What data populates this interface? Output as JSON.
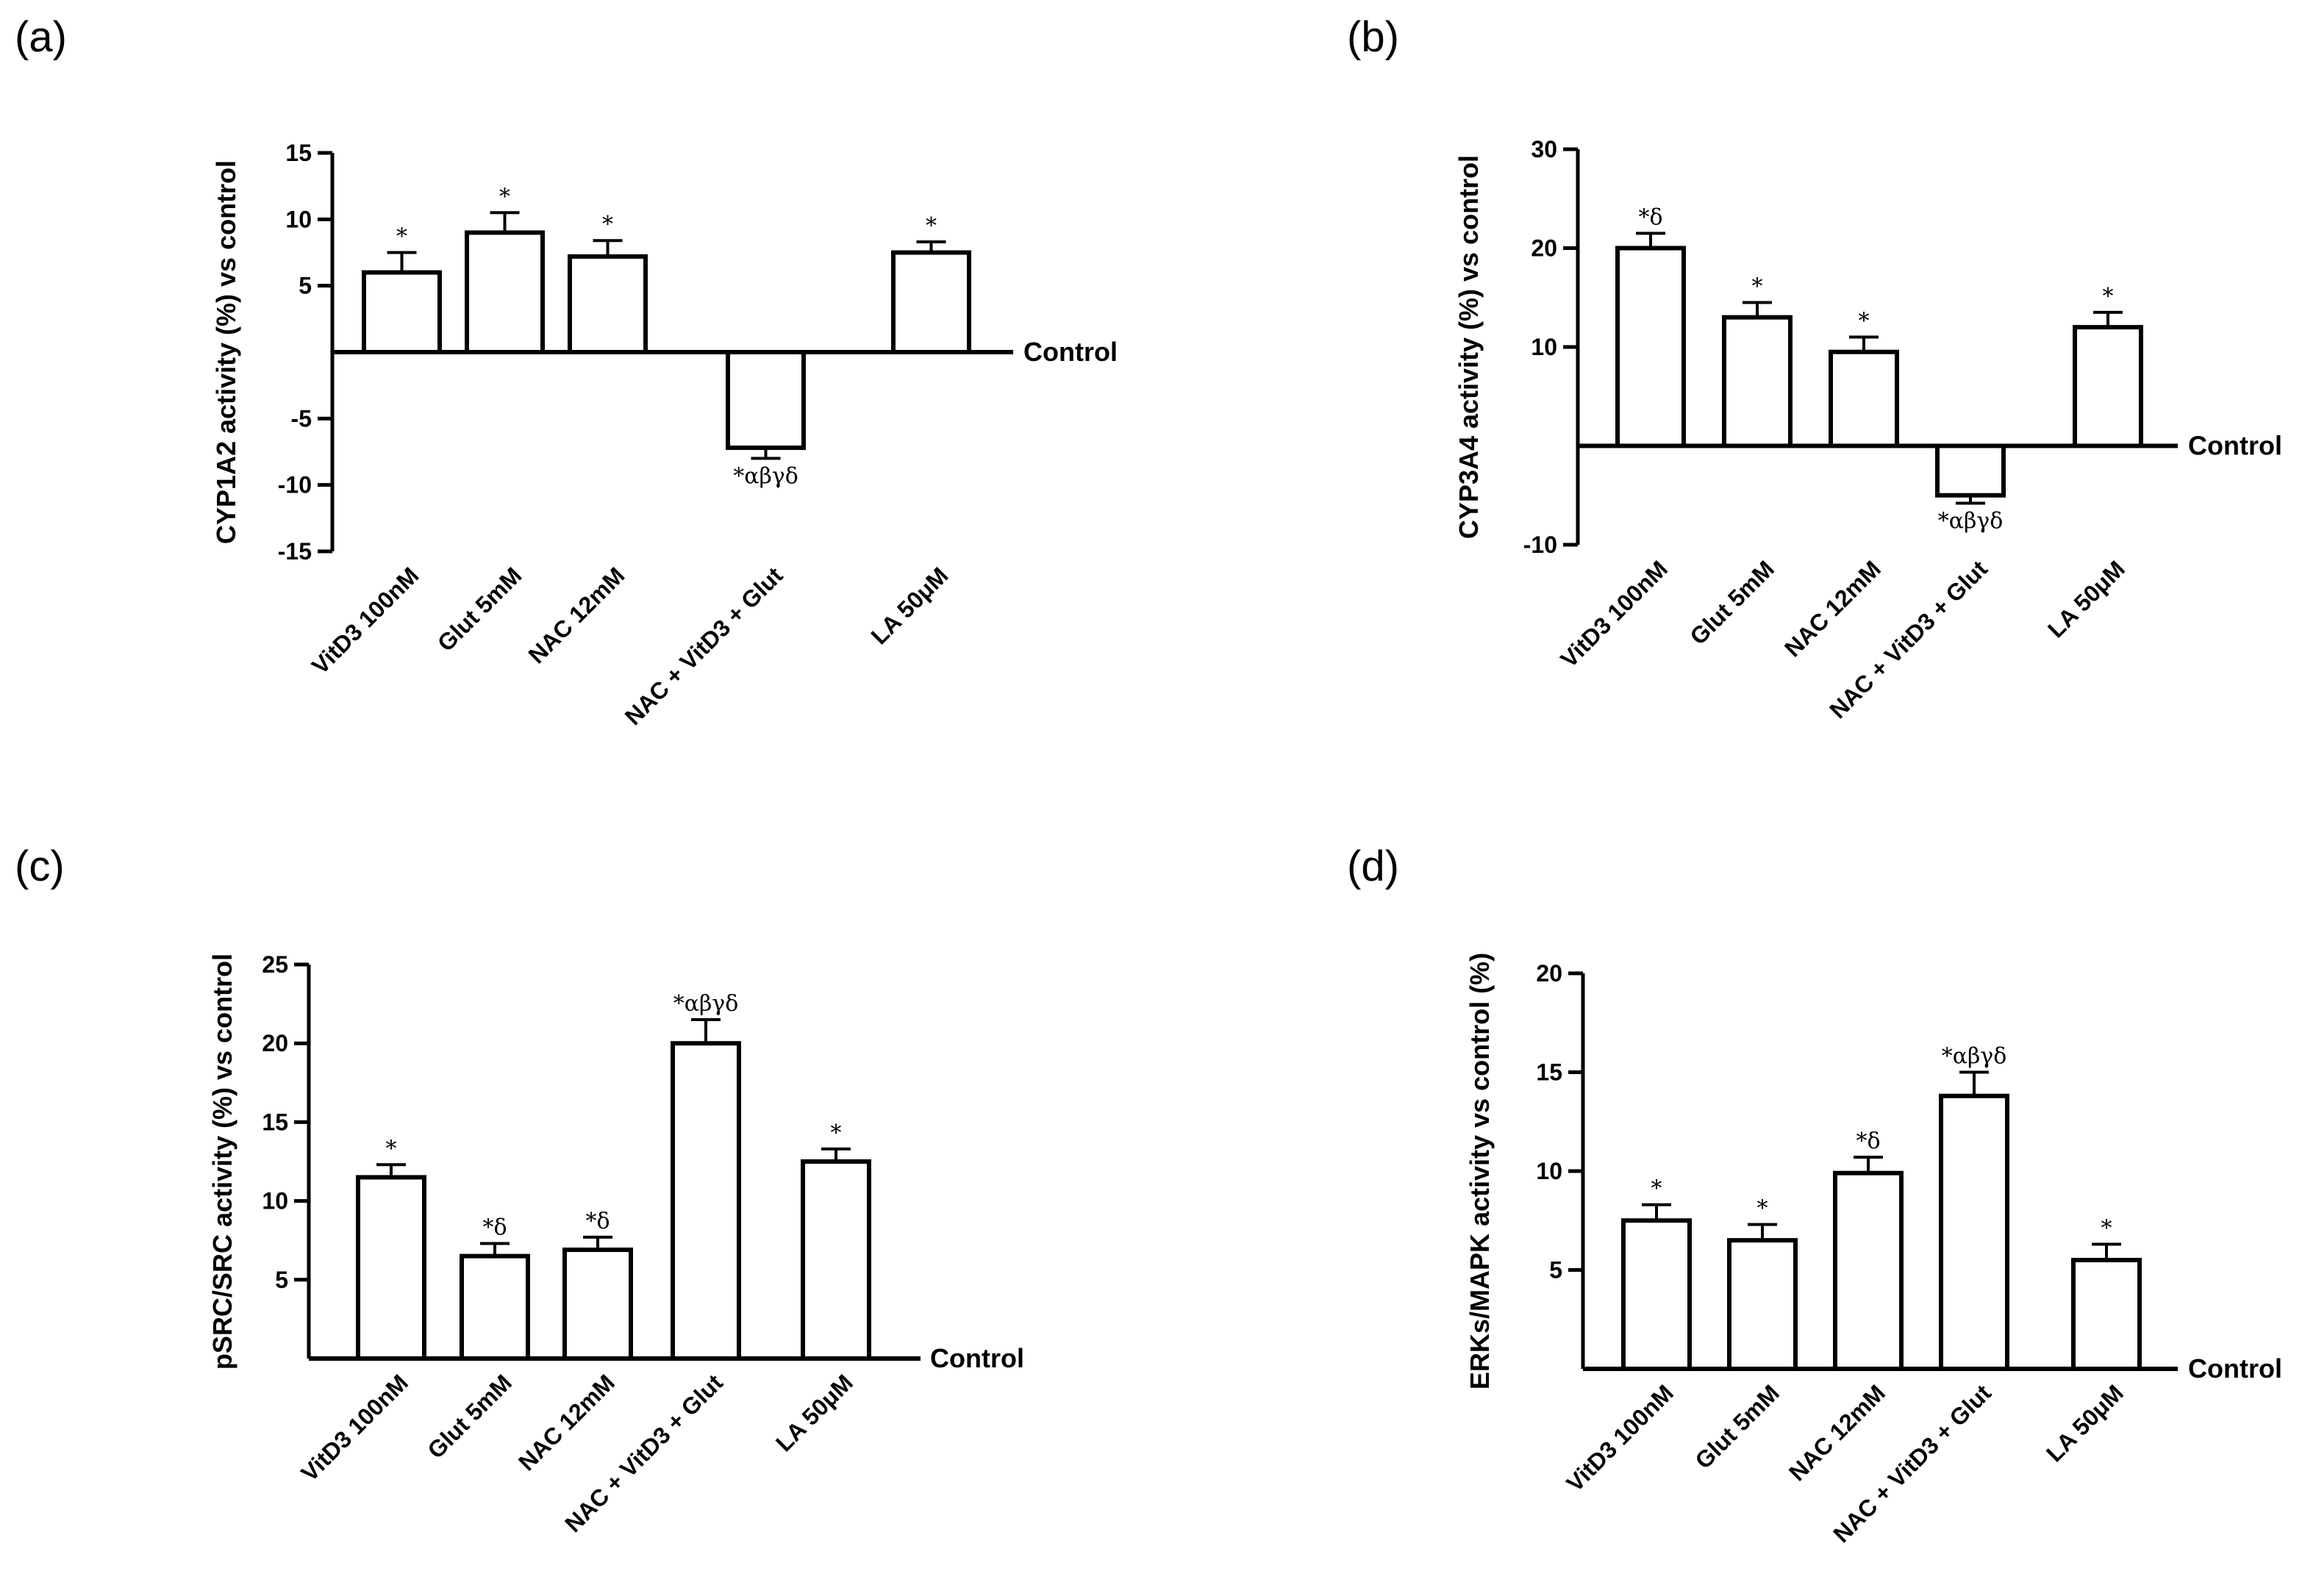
{
  "chart_data": [
    {
      "type": "bar",
      "panel_label": "(a)",
      "ylabel": "CYP1A2 activity (%) vs control",
      "baseline_label": "Control",
      "categories": [
        "VitD3 100nM",
        "Glut 5mM",
        "NAC 12mM",
        "NAC + VitD3 + Glut",
        "LA 50μM"
      ],
      "values": [
        6,
        9,
        7.2,
        -7.2,
        7.5
      ],
      "errors": [
        1.5,
        1.5,
        1.2,
        0.8,
        0.8
      ],
      "significance": [
        "*",
        "*",
        "*",
        "*αβγδ",
        "*"
      ],
      "ylim": [
        -15,
        15
      ],
      "yticks": [
        -15,
        -10,
        -5,
        5,
        10,
        15
      ],
      "ytick_labels": [
        "-15",
        "-10",
        "-5",
        "5",
        "10",
        "15"
      ]
    },
    {
      "type": "bar",
      "panel_label": "(b)",
      "ylabel": "CYP3A4 activity (%) vs control",
      "baseline_label": "Control",
      "categories": [
        "VitD3 100nM",
        "Glut 5mM",
        "NAC 12mM",
        "NAC + VitD3 + Glut",
        "LA 50μM"
      ],
      "values": [
        20,
        13,
        9.5,
        -5,
        12
      ],
      "errors": [
        1.5,
        1.5,
        1.5,
        0.8,
        1.5
      ],
      "significance": [
        "*δ",
        "*",
        "*",
        "*αβγδ",
        "*"
      ],
      "ylim": [
        -10,
        30
      ],
      "yticks": [
        -10,
        10,
        20,
        30
      ],
      "ytick_labels": [
        "-10",
        "10",
        "20",
        "30"
      ]
    },
    {
      "type": "bar",
      "panel_label": "(c)",
      "ylabel": "pSRC/SRC activity (%) vs control",
      "baseline_label": "Control",
      "categories": [
        "VitD3 100nM",
        "Glut 5mM",
        "NAC 12mM",
        "NAC + VitD3 + Glut",
        "LA 50μM"
      ],
      "values": [
        11.5,
        6.5,
        6.9,
        20,
        12.5
      ],
      "errors": [
        0.8,
        0.8,
        0.8,
        1.5,
        0.8
      ],
      "significance": [
        "*",
        "*δ",
        "*δ",
        "*αβγδ",
        "*"
      ],
      "ylim": [
        0,
        25
      ],
      "yticks": [
        5,
        10,
        15,
        20,
        25
      ],
      "ytick_labels": [
        "5",
        "10",
        "15",
        "20",
        "25"
      ]
    },
    {
      "type": "bar",
      "panel_label": "(d)",
      "ylabel": "ERKs/MAPK activity vs control (%)",
      "baseline_label": "Control",
      "categories": [
        "VitD3 100nM",
        "Glut 5mM",
        "NAC 12mM",
        "NAC + VitD3 + Glut",
        "LA 50μM"
      ],
      "values": [
        7.5,
        6.5,
        9.9,
        13.8,
        5.5
      ],
      "errors": [
        0.8,
        0.8,
        0.8,
        1.2,
        0.8
      ],
      "significance": [
        "*",
        "*",
        "*δ",
        "*αβγδ",
        "*"
      ],
      "ylim": [
        0,
        20
      ],
      "yticks": [
        5,
        10,
        15,
        20
      ],
      "ytick_labels": [
        "5",
        "10",
        "15",
        "20"
      ]
    }
  ]
}
